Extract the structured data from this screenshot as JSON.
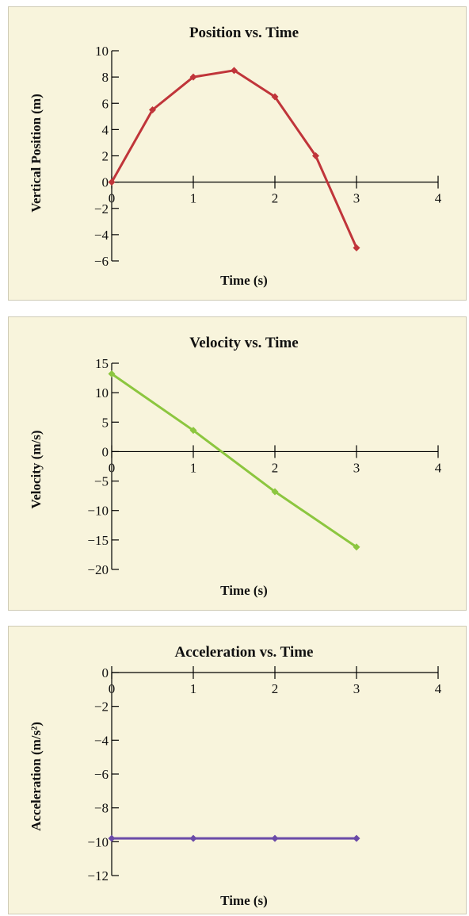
{
  "chart_data": [
    {
      "type": "line",
      "title": "Position vs. Time",
      "xlabel": "Time (s)",
      "ylabel": "Vertical Position (m)",
      "xlim": [
        0,
        4
      ],
      "ylim": [
        -6,
        10
      ],
      "x_ticks": [
        "0",
        "1",
        "2",
        "3",
        "4"
      ],
      "y_ticks": [
        "10",
        "8",
        "6",
        "4",
        "2",
        "0",
        "−2",
        "−4",
        "−6"
      ],
      "x_tick_values": [
        0,
        1,
        2,
        3,
        4
      ],
      "y_tick_values": [
        10,
        8,
        6,
        4,
        2,
        0,
        -2,
        -4,
        -6
      ],
      "grid": false,
      "color": "#c0353a",
      "series": [
        {
          "x": [
            0,
            0.5,
            1,
            1.5,
            2,
            2.5,
            3
          ],
          "y": [
            0,
            5.5,
            8,
            8.5,
            6.5,
            2,
            -5
          ]
        }
      ]
    },
    {
      "type": "line",
      "title": "Velocity vs. Time",
      "xlabel": "Time (s)",
      "ylabel": "Velocity (m/s)",
      "xlim": [
        0,
        4
      ],
      "ylim": [
        -20,
        15
      ],
      "x_ticks": [
        "0",
        "1",
        "2",
        "3",
        "4"
      ],
      "y_ticks": [
        "15",
        "10",
        "5",
        "0",
        "−5",
        "−10",
        "−15",
        "−20"
      ],
      "x_tick_values": [
        0,
        1,
        2,
        3,
        4
      ],
      "y_tick_values": [
        15,
        10,
        5,
        0,
        -5,
        -10,
        -15,
        -20
      ],
      "grid": false,
      "color": "#8cc63f",
      "series": [
        {
          "x": [
            0,
            1,
            2,
            3
          ],
          "y": [
            13.2,
            3.6,
            -6.8,
            -16.2
          ]
        }
      ]
    },
    {
      "type": "line",
      "title": "Acceleration vs. Time",
      "xlabel": "Time (s)",
      "ylabel": "Acceleration (m/s²)",
      "xlim": [
        0,
        4
      ],
      "ylim": [
        -12,
        0
      ],
      "x_ticks": [
        "0",
        "1",
        "2",
        "3",
        "4"
      ],
      "y_ticks": [
        "0",
        "−2",
        "−4",
        "−6",
        "−8",
        "−10",
        "−12"
      ],
      "x_tick_values": [
        0,
        1,
        2,
        3,
        4
      ],
      "y_tick_values": [
        0,
        -2,
        -4,
        -6,
        -8,
        -10,
        -12
      ],
      "grid": false,
      "color": "#6a4aa8",
      "series": [
        {
          "x": [
            0,
            1,
            2,
            3
          ],
          "y": [
            -9.8,
            -9.8,
            -9.8,
            -9.8
          ]
        }
      ]
    }
  ]
}
